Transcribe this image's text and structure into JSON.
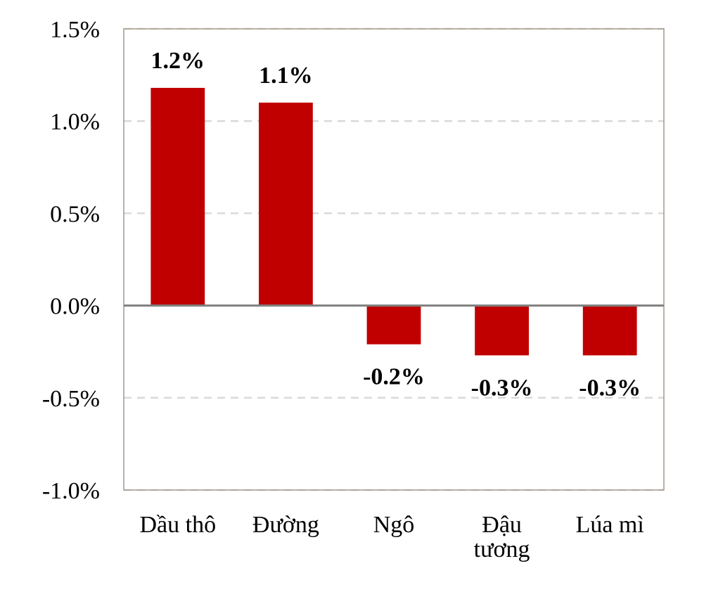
{
  "chart_data": {
    "type": "bar",
    "categories": [
      [
        "Dầu thô"
      ],
      [
        "Đường"
      ],
      [
        "Ngô"
      ],
      [
        "Đậu",
        "tương"
      ],
      [
        "Lúa mì"
      ]
    ],
    "values": [
      1.18,
      1.1,
      -0.21,
      -0.27,
      -0.27
    ],
    "data_labels": [
      "1.2%",
      "1.1%",
      "-0.2%",
      "-0.3%",
      "-0.3%"
    ],
    "ylim": [
      -1.0,
      1.5
    ],
    "yticks": [
      -1.0,
      -0.5,
      0.0,
      0.5,
      1.0,
      1.5
    ],
    "ytick_labels": [
      "-1.0%",
      "-0.5%",
      "0.0%",
      "0.5%",
      "1.0%",
      "1.5%"
    ],
    "grid": true,
    "title": "",
    "xlabel": "",
    "ylabel": "",
    "colors": {
      "bar": "#c00000",
      "grid": "#d9d9d9",
      "zero_line": "#808080",
      "frame": "#a6978a"
    }
  }
}
